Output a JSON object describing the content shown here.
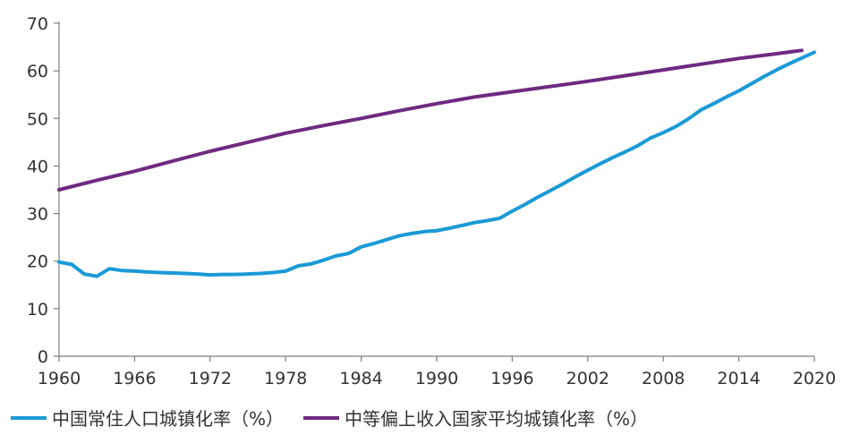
{
  "chart_data": {
    "type": "line",
    "title": "",
    "xlabel": "",
    "ylabel": "",
    "xlim": [
      1960,
      2020
    ],
    "ylim": [
      0,
      70
    ],
    "x_ticks": [
      "1960",
      "1966",
      "1972",
      "1978",
      "1984",
      "1990",
      "1996",
      "2002",
      "2008",
      "2014",
      "2020"
    ],
    "y_ticks": [
      "0",
      "10",
      "20",
      "30",
      "40",
      "50",
      "60",
      "70"
    ],
    "grid": false,
    "legend_position": "bottom",
    "series": [
      {
        "name": "中国常住人口城镇化率（%）",
        "color": "#1a9ad6",
        "x": [
          1960,
          1961,
          1962,
          1963,
          1964,
          1965,
          1966,
          1967,
          1968,
          1969,
          1970,
          1971,
          1972,
          1973,
          1974,
          1975,
          1976,
          1977,
          1978,
          1979,
          1980,
          1981,
          1982,
          1983,
          1984,
          1985,
          1986,
          1987,
          1988,
          1989,
          1990,
          1991,
          1992,
          1993,
          1994,
          1995,
          1996,
          1997,
          1998,
          1999,
          2000,
          2001,
          2002,
          2003,
          2004,
          2005,
          2006,
          2007,
          2008,
          2009,
          2010,
          2011,
          2012,
          2013,
          2014,
          2015,
          2016,
          2017,
          2018,
          2019,
          2020
        ],
        "values": [
          19.8,
          19.3,
          17.3,
          16.8,
          18.4,
          18.0,
          17.9,
          17.7,
          17.6,
          17.5,
          17.4,
          17.3,
          17.1,
          17.2,
          17.2,
          17.3,
          17.4,
          17.6,
          17.9,
          19.0,
          19.4,
          20.2,
          21.1,
          21.6,
          23.0,
          23.7,
          24.5,
          25.3,
          25.8,
          26.2,
          26.4,
          26.9,
          27.5,
          28.1,
          28.5,
          29.0,
          30.5,
          31.9,
          33.4,
          34.8,
          36.2,
          37.7,
          39.1,
          40.5,
          41.8,
          43.0,
          44.3,
          45.9,
          47.0,
          48.3,
          49.9,
          51.8,
          53.1,
          54.5,
          55.8,
          57.3,
          58.8,
          60.2,
          61.5,
          62.7,
          63.9
        ]
      },
      {
        "name": "中等偏上收入国家平均城镇化率（%）",
        "color": "#6e2a80",
        "x": [
          1960,
          1963,
          1966,
          1969,
          1972,
          1975,
          1978,
          1981,
          1984,
          1987,
          1990,
          1993,
          1996,
          1999,
          2002,
          2005,
          2008,
          2011,
          2014,
          2017,
          2019
        ],
        "values": [
          35.0,
          37.0,
          38.9,
          41.0,
          43.1,
          45.0,
          46.9,
          48.5,
          50.0,
          51.6,
          53.1,
          54.5,
          55.6,
          56.7,
          57.8,
          59.0,
          60.2,
          61.4,
          62.6,
          63.6,
          64.3
        ]
      }
    ]
  }
}
